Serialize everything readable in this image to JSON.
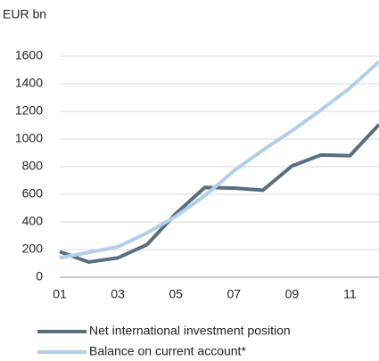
{
  "chart_data": {
    "type": "line",
    "y_label": "EUR bn",
    "categories": [
      "01",
      null,
      "03",
      null,
      "05",
      null,
      "07",
      null,
      "09",
      null,
      "11",
      null
    ],
    "series": [
      {
        "name": "Net international investment position",
        "color": "#5b6e7e",
        "values": [
          185,
          110,
          140,
          235,
          460,
          650,
          645,
          630,
          805,
          885,
          880,
          1105
        ]
      },
      {
        "name": "Balance on current account*",
        "color": "#b3cfe8",
        "values": [
          140,
          180,
          220,
          320,
          440,
          590,
          770,
          920,
          1060,
          1210,
          1370,
          1560
        ]
      }
    ],
    "ylim": [
      0,
      1600
    ],
    "yticks": [
      0,
      200,
      400,
      600,
      800,
      1000,
      1200,
      1400,
      1600
    ],
    "grid": true
  }
}
